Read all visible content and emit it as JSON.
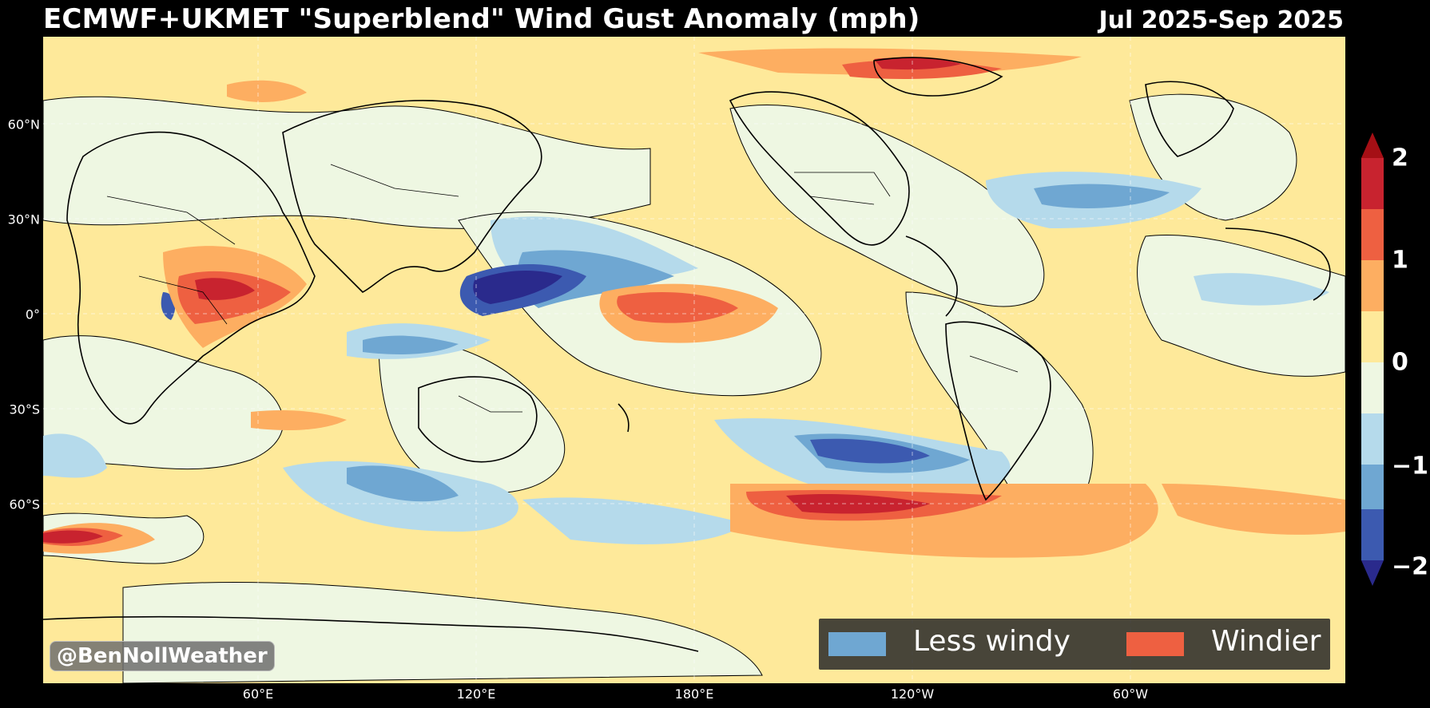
{
  "title": "ECMWF+UKMET \"Superblend\" Wind Gust Anomaly (mph)",
  "period": "Jul 2025-Sep 2025",
  "lat_ticks": [
    "60°N",
    "30°N",
    "0°",
    "30°S",
    "60°S"
  ],
  "lon_ticks": [
    "60°E",
    "120°E",
    "180°E",
    "120°W",
    "60°W"
  ],
  "colorbar": {
    "ticks": [
      "2",
      "1",
      "0",
      "−1",
      "−2"
    ],
    "colors": [
      "#a50f15",
      "#c8232f",
      "#ee6041",
      "#fdae61",
      "#fee99a",
      "#eef7e2",
      "#b5daeb",
      "#6fa7d2",
      "#3c5ab0",
      "#2a2a8c"
    ]
  },
  "legend": {
    "less_windy": "Less windy",
    "windier": "Windier",
    "less_color": "#6fa7d2",
    "windier_color": "#ee6041"
  },
  "credit": "@BenNollWeather"
}
